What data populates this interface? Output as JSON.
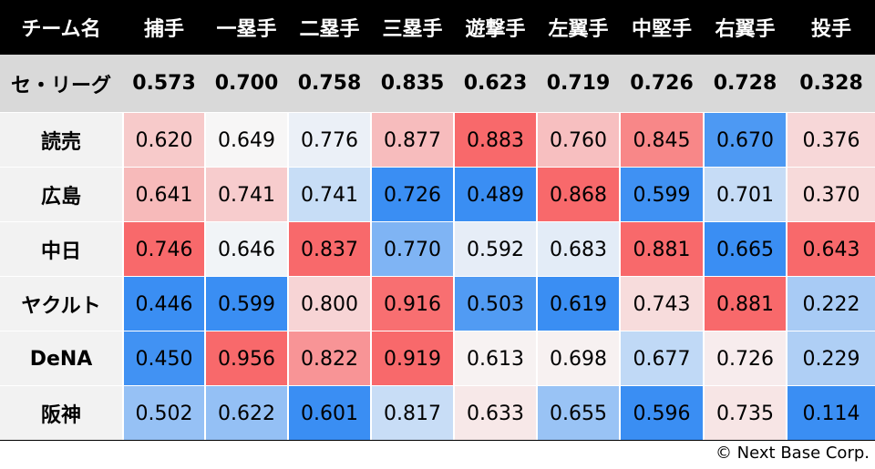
{
  "chart_data": {
    "type": "heatmap",
    "corner_label": "チーム名",
    "columns": [
      "捕手",
      "一塁手",
      "二塁手",
      "三塁手",
      "遊撃手",
      "左翼手",
      "中堅手",
      "右翼手",
      "投手"
    ],
    "league_row": {
      "label": "セ・リーグ",
      "values": [
        "0.573",
        "0.700",
        "0.758",
        "0.835",
        "0.623",
        "0.719",
        "0.726",
        "0.728",
        "0.328"
      ]
    },
    "rows": [
      {
        "team": "読売",
        "values": [
          "0.620",
          "0.649",
          "0.776",
          "0.877",
          "0.883",
          "0.760",
          "0.845",
          "0.670",
          "0.376"
        ]
      },
      {
        "team": "広島",
        "values": [
          "0.641",
          "0.741",
          "0.741",
          "0.726",
          "0.489",
          "0.868",
          "0.599",
          "0.701",
          "0.370"
        ]
      },
      {
        "team": "中日",
        "values": [
          "0.746",
          "0.646",
          "0.837",
          "0.770",
          "0.592",
          "0.683",
          "0.881",
          "0.665",
          "0.643"
        ]
      },
      {
        "team": "ヤクルト",
        "values": [
          "0.446",
          "0.599",
          "0.800",
          "0.916",
          "0.503",
          "0.619",
          "0.743",
          "0.881",
          "0.222"
        ]
      },
      {
        "team": "DeNA",
        "values": [
          "0.450",
          "0.956",
          "0.822",
          "0.919",
          "0.613",
          "0.698",
          "0.677",
          "0.726",
          "0.229"
        ]
      },
      {
        "team": "阪神",
        "values": [
          "0.502",
          "0.622",
          "0.601",
          "0.817",
          "0.633",
          "0.655",
          "0.596",
          "0.735",
          "0.114"
        ]
      }
    ],
    "colors": {
      "high": "#f8696b",
      "low": "#3a8ef3",
      "mid": "#f7f7f7",
      "header_bg": "#000000",
      "league_bg": "#d9d9d9",
      "label_bg": "#f2f2f2"
    }
  },
  "footer": {
    "copyright": "© Next Base Corp."
  }
}
